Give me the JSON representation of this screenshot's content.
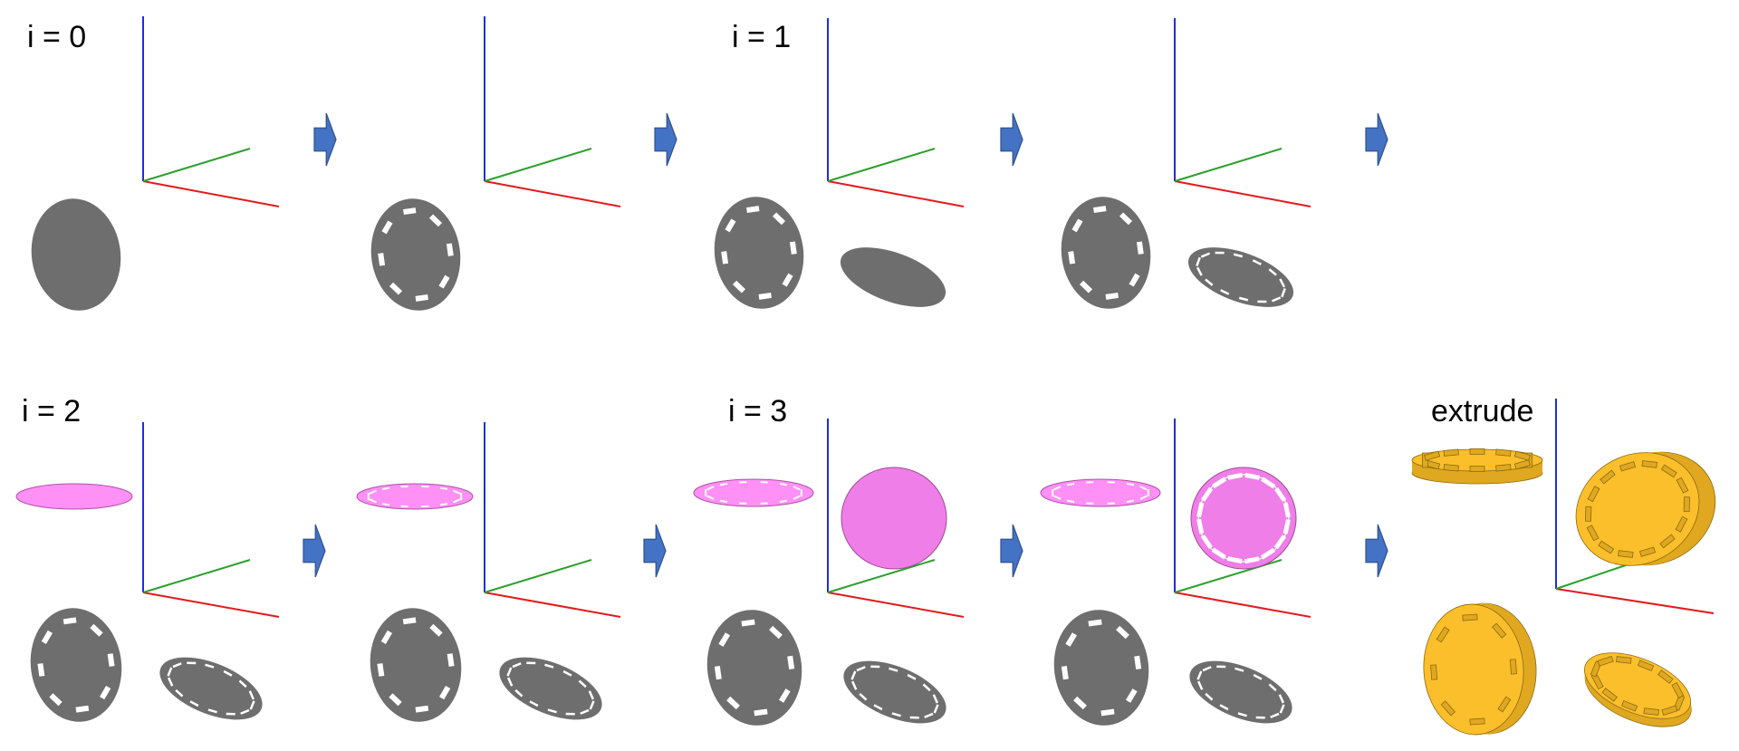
{
  "labels": {
    "step_0": "i = 0",
    "step_1": "i = 1",
    "step_2": "i = 2",
    "step_3": "i = 3",
    "final": "extrude"
  },
  "colors": {
    "background": "#ffffff",
    "axis_x": "#e31a1c",
    "axis_y": "#2ca02c",
    "axis_z": "#1f2fd6",
    "disk_gray": "#6e6e6e",
    "disk_pink": "#f07ee8",
    "disk_pink_flat": "#ff90f5",
    "extrude_gold": "#fbbf2c",
    "extrude_gold_dark": "#e0a820",
    "arrow_fill": "#4472c4",
    "arrow_edge": "#2f528f"
  },
  "icons": {
    "arrow": "block-arrow-right-icon",
    "axes": "xyz-axes-icon"
  }
}
